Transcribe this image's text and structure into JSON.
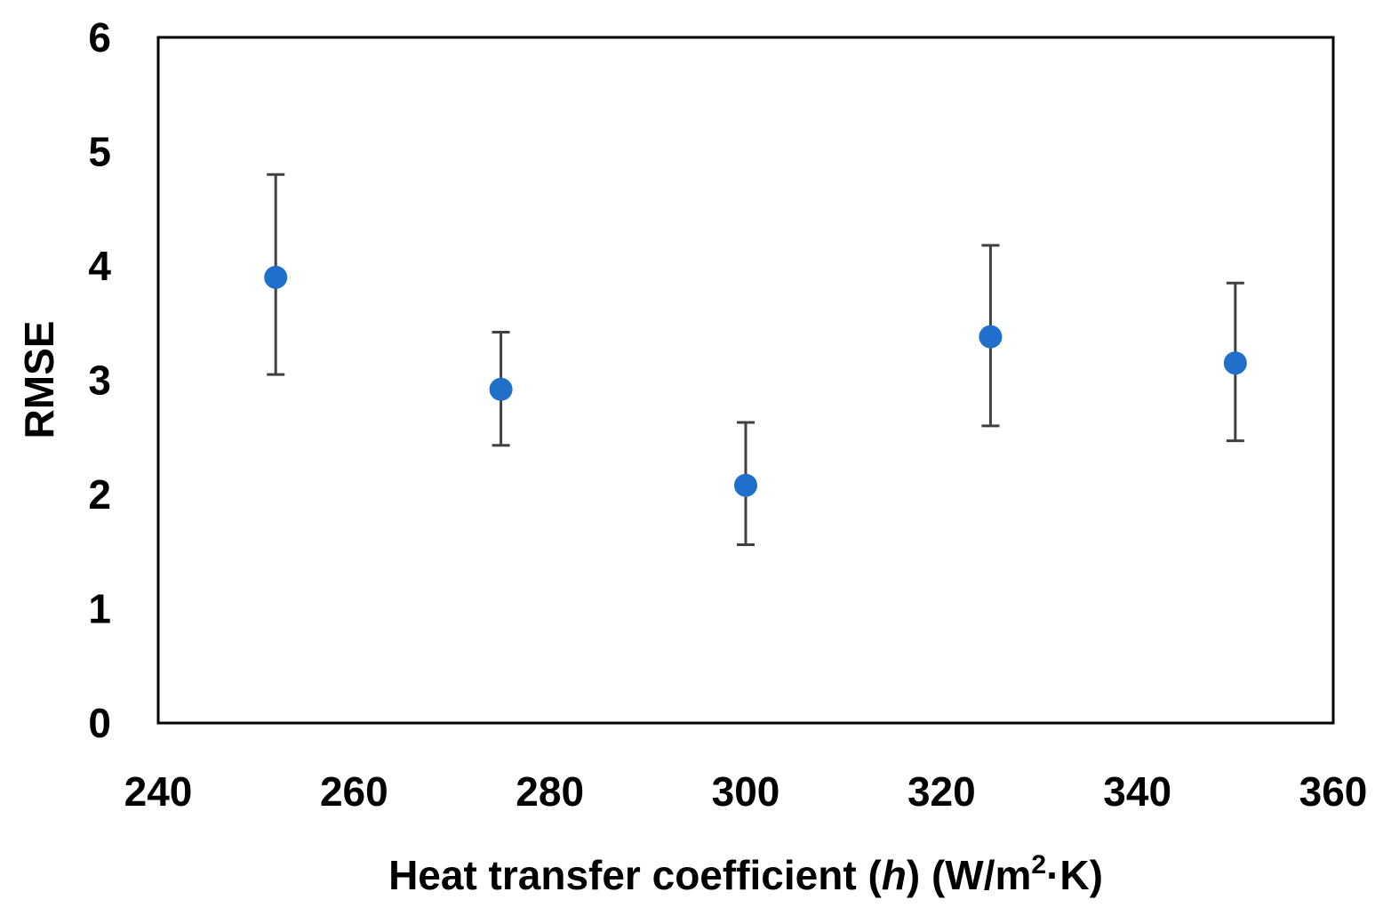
{
  "chart_data": {
    "type": "scatter",
    "xlabel": {
      "prefix": "Heat transfer coefficient (",
      "italic": "h",
      "middle": ") (W/m",
      "sup": "2",
      "suffix": "·K)"
    },
    "ylabel": "RMSE",
    "xlim": [
      240,
      360
    ],
    "ylim": [
      0,
      6
    ],
    "x_ticks": [
      "240",
      "260",
      "280",
      "300",
      "320",
      "340",
      "360"
    ],
    "y_ticks": [
      "0",
      "1",
      "2",
      "3",
      "4",
      "5",
      "6"
    ],
    "grid": false,
    "legend": "none",
    "series": [
      {
        "color": "#1F6FCB",
        "errorbar_color": "#404040",
        "points": [
          {
            "x": 252,
            "y": 3.9,
            "err_low": 3.05,
            "err_high": 4.8
          },
          {
            "x": 275,
            "y": 2.92,
            "err_low": 2.43,
            "err_high": 3.42
          },
          {
            "x": 300,
            "y": 2.08,
            "err_low": 1.56,
            "err_high": 2.63
          },
          {
            "x": 325,
            "y": 3.38,
            "err_low": 2.6,
            "err_high": 4.18
          },
          {
            "x": 350,
            "y": 3.15,
            "err_low": 2.47,
            "err_high": 3.85
          }
        ]
      }
    ]
  }
}
